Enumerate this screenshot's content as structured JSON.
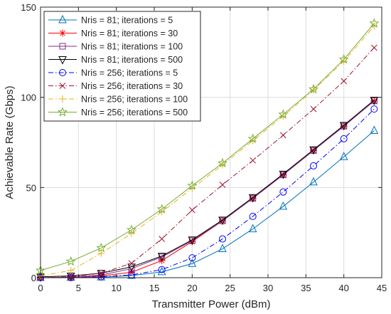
{
  "chart_data": {
    "type": "line",
    "title": "",
    "xlabel": "Transmitter Power (dBm)",
    "ylabel": "Achievable Rate (Gbps)",
    "xlim": [
      0,
      45
    ],
    "ylim": [
      0,
      150
    ],
    "xticks": [
      0,
      5,
      10,
      15,
      20,
      25,
      30,
      35,
      40,
      45
    ],
    "yticks": [
      0,
      50,
      100,
      150
    ],
    "grid": true,
    "legend_position": "top-left",
    "x": [
      0,
      4,
      8,
      12,
      16,
      20,
      24,
      28,
      32,
      36,
      40,
      44
    ],
    "series": [
      {
        "name": "Nris = 81; iterations = 5",
        "color": "#0072BD",
        "marker": "triangle",
        "line_style": "solid",
        "values": [
          0.0,
          0.1,
          0.3,
          1.2,
          3.2,
          7.8,
          16.0,
          27.0,
          39.5,
          53.0,
          67.0,
          81.5
        ]
      },
      {
        "name": "Nris = 81; iterations = 30",
        "color": "#FF0000",
        "marker": "asterisk",
        "line_style": "solid",
        "values": [
          0.0,
          0.2,
          1.0,
          3.0,
          9.5,
          20.0,
          31.5,
          44.0,
          57.0,
          70.5,
          84.0,
          98.0
        ]
      },
      {
        "name": "Nris = 81; iterations = 100",
        "color": "#7E2F8E",
        "marker": "square",
        "line_style": "solid",
        "values": [
          0.0,
          0.3,
          1.5,
          5.0,
          11.5,
          20.5,
          31.5,
          44.0,
          57.0,
          70.5,
          84.0,
          98.0
        ]
      },
      {
        "name": "Nris = 81; iterations = 500",
        "color": "#000000",
        "marker": "triangle-down",
        "line_style": "solid",
        "values": [
          0.5,
          1.0,
          2.5,
          6.0,
          12.0,
          21.0,
          32.0,
          44.5,
          57.5,
          71.0,
          84.5,
          98.5
        ]
      },
      {
        "name": "Nris = 256; iterations = 5",
        "color": "#0000FF",
        "marker": "circle",
        "line_style": "dashdot",
        "values": [
          0.0,
          0.1,
          0.5,
          1.5,
          4.5,
          11.0,
          21.5,
          34.0,
          47.5,
          62.0,
          77.0,
          93.5
        ]
      },
      {
        "name": "Nris = 256; iterations = 30",
        "color": "#A2142F",
        "marker": "x",
        "line_style": "dashdot",
        "values": [
          0.0,
          0.5,
          2.5,
          8.0,
          21.5,
          37.5,
          51.5,
          65.0,
          79.0,
          93.5,
          109.0,
          127.5
        ]
      },
      {
        "name": "Nris = 256; iterations = 100",
        "color": "#EDB120",
        "marker": "plus",
        "line_style": "dashdot",
        "values": [
          1.0,
          4.0,
          13.5,
          24.5,
          36.5,
          49.5,
          62.5,
          76.0,
          89.5,
          104.0,
          120.0,
          139.5
        ]
      },
      {
        "name": "Nris = 256; iterations = 500",
        "color": "#77AC30",
        "marker": "star",
        "line_style": "solid",
        "values": [
          4.0,
          9.0,
          16.5,
          26.5,
          38.0,
          51.0,
          63.5,
          77.0,
          90.5,
          104.5,
          121.0,
          141.0
        ]
      }
    ]
  }
}
